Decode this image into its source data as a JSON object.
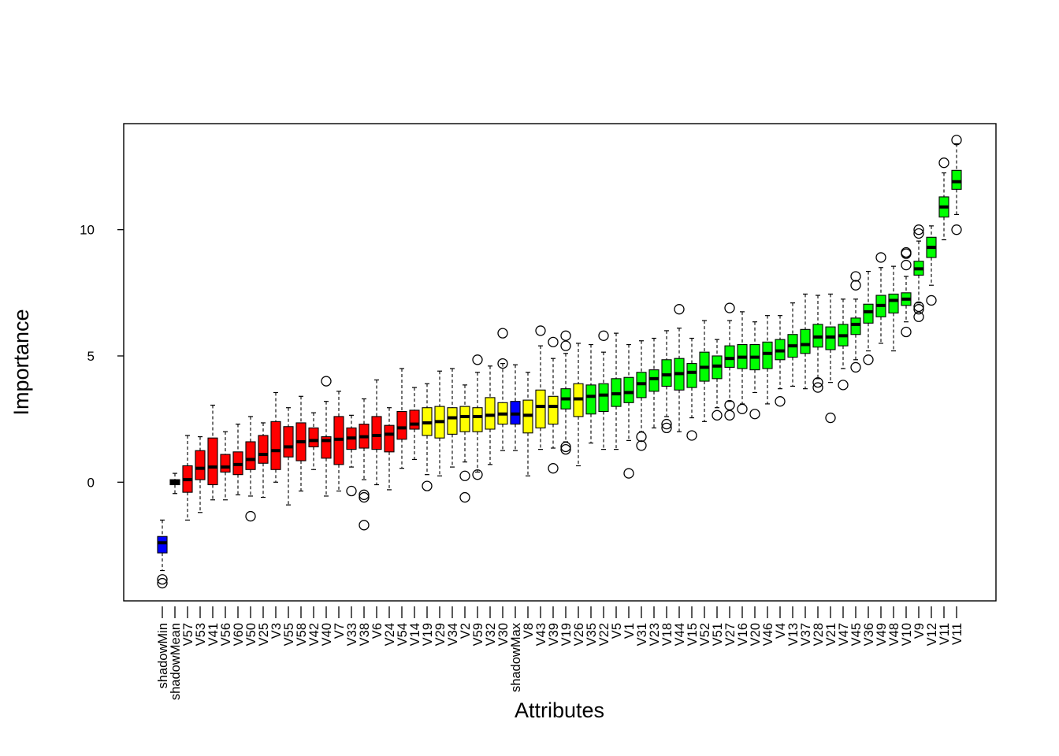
{
  "chart_data": {
    "type": "boxplot",
    "xlabel": "Attributes",
    "ylabel": "Importance",
    "ylim": [
      -4.7,
      14.2
    ],
    "yticks": [
      0,
      5,
      10
    ],
    "colors": {
      "shadow": "#0000ff",
      "rejected": "#ff0000",
      "tentative": "#ffff00",
      "confirmed": "#00ff00",
      "shadowMean": "#000000"
    },
    "boxes": [
      {
        "label": "shadowMin",
        "cls": "shadow",
        "q1": -2.8,
        "med": -2.4,
        "q3": -2.15,
        "wlo": -3.5,
        "whi": -1.5,
        "out": [
          -3.85,
          -4.0
        ]
      },
      {
        "label": "shadowMean",
        "cls": "shadowMean",
        "q1": -0.1,
        "med": 0.0,
        "q3": 0.1,
        "wlo": -0.45,
        "whi": 0.35,
        "out": []
      },
      {
        "label": "V57",
        "cls": "rejected",
        "q1": -0.4,
        "med": 0.1,
        "q3": 0.65,
        "wlo": -1.5,
        "whi": 1.85,
        "out": []
      },
      {
        "label": "V53",
        "cls": "rejected",
        "q1": 0.1,
        "med": 0.55,
        "q3": 1.25,
        "wlo": -1.2,
        "whi": 1.8,
        "out": []
      },
      {
        "label": "V41",
        "cls": "rejected",
        "q1": -0.1,
        "med": 0.6,
        "q3": 1.75,
        "wlo": -0.7,
        "whi": 3.05,
        "out": []
      },
      {
        "label": "V56",
        "cls": "rejected",
        "q1": 0.4,
        "med": 0.6,
        "q3": 1.1,
        "wlo": -0.7,
        "whi": 2.0,
        "out": []
      },
      {
        "label": "V60",
        "cls": "rejected",
        "q1": 0.3,
        "med": 0.7,
        "q3": 1.2,
        "wlo": -0.5,
        "whi": 2.3,
        "out": []
      },
      {
        "label": "V50",
        "cls": "rejected",
        "q1": 0.5,
        "med": 0.9,
        "q3": 1.6,
        "wlo": -0.55,
        "whi": 2.6,
        "out": [
          -1.35
        ]
      },
      {
        "label": "V25",
        "cls": "rejected",
        "q1": 0.75,
        "med": 1.1,
        "q3": 1.85,
        "wlo": -0.6,
        "whi": 2.35,
        "out": []
      },
      {
        "label": "V3",
        "cls": "rejected",
        "q1": 0.5,
        "med": 1.25,
        "q3": 2.4,
        "wlo": 0.0,
        "whi": 3.55,
        "out": []
      },
      {
        "label": "V55",
        "cls": "rejected",
        "q1": 1.0,
        "med": 1.4,
        "q3": 2.2,
        "wlo": -0.9,
        "whi": 2.95,
        "out": []
      },
      {
        "label": "V58",
        "cls": "rejected",
        "q1": 0.85,
        "med": 1.6,
        "q3": 2.35,
        "wlo": -0.35,
        "whi": 3.4,
        "out": []
      },
      {
        "label": "V42",
        "cls": "rejected",
        "q1": 1.4,
        "med": 1.65,
        "q3": 2.15,
        "wlo": 0.5,
        "whi": 2.75,
        "out": []
      },
      {
        "label": "V40",
        "cls": "rejected",
        "q1": 0.95,
        "med": 1.65,
        "q3": 1.8,
        "wlo": -0.55,
        "whi": 3.2,
        "out": [
          4.0
        ]
      },
      {
        "label": "V7",
        "cls": "rejected",
        "q1": 0.7,
        "med": 1.7,
        "q3": 2.6,
        "wlo": -0.35,
        "whi": 3.6,
        "out": []
      },
      {
        "label": "V33",
        "cls": "rejected",
        "q1": 1.3,
        "med": 1.75,
        "q3": 2.15,
        "wlo": 0.6,
        "whi": 2.65,
        "out": [
          -0.35
        ]
      },
      {
        "label": "V38",
        "cls": "rejected",
        "q1": 1.35,
        "med": 1.8,
        "q3": 2.3,
        "wlo": 0.1,
        "whi": 3.3,
        "out": [
          -0.5,
          -0.6,
          -1.7
        ]
      },
      {
        "label": "V6",
        "cls": "rejected",
        "q1": 1.3,
        "med": 1.85,
        "q3": 2.6,
        "wlo": -0.1,
        "whi": 4.05,
        "out": []
      },
      {
        "label": "V24",
        "cls": "rejected",
        "q1": 1.2,
        "med": 1.9,
        "q3": 2.25,
        "wlo": -0.3,
        "whi": 2.95,
        "out": []
      },
      {
        "label": "V54",
        "cls": "rejected",
        "q1": 1.7,
        "med": 2.15,
        "q3": 2.8,
        "wlo": 0.55,
        "whi": 4.5,
        "out": []
      },
      {
        "label": "V14",
        "cls": "rejected",
        "q1": 2.1,
        "med": 2.3,
        "q3": 2.85,
        "wlo": 0.9,
        "whi": 3.75,
        "out": []
      },
      {
        "label": "V19",
        "cls": "tentative",
        "q1": 1.85,
        "med": 2.35,
        "q3": 2.95,
        "wlo": 0.3,
        "whi": 3.9,
        "out": [
          -0.15
        ]
      },
      {
        "label": "V29",
        "cls": "tentative",
        "q1": 1.75,
        "med": 2.4,
        "q3": 3.0,
        "wlo": 0.25,
        "whi": 4.4,
        "out": []
      },
      {
        "label": "V34",
        "cls": "tentative",
        "q1": 1.9,
        "med": 2.55,
        "q3": 2.95,
        "wlo": 0.6,
        "whi": 4.5,
        "out": []
      },
      {
        "label": "V2",
        "cls": "tentative",
        "q1": 2.0,
        "med": 2.6,
        "q3": 3.0,
        "wlo": 0.8,
        "whi": 3.85,
        "out": [
          0.25,
          -0.6
        ]
      },
      {
        "label": "V59",
        "cls": "tentative",
        "q1": 2.0,
        "med": 2.6,
        "q3": 2.95,
        "wlo": 0.4,
        "whi": 4.35,
        "out": [
          0.3,
          4.85
        ]
      },
      {
        "label": "V32",
        "cls": "tentative",
        "q1": 2.1,
        "med": 2.65,
        "q3": 3.35,
        "wlo": 0.7,
        "whi": 4.6,
        "out": []
      },
      {
        "label": "V30",
        "cls": "tentative",
        "q1": 2.3,
        "med": 2.7,
        "q3": 3.15,
        "wlo": 1.25,
        "whi": 4.7,
        "out": [
          4.7,
          5.9
        ]
      },
      {
        "label": "shadowMax",
        "cls": "shadow",
        "q1": 2.3,
        "med": 2.7,
        "q3": 3.2,
        "wlo": 1.25,
        "whi": 4.65,
        "out": []
      },
      {
        "label": "V8",
        "cls": "tentative",
        "q1": 1.95,
        "med": 2.65,
        "q3": 3.25,
        "wlo": 0.25,
        "whi": 4.35,
        "out": []
      },
      {
        "label": "V43",
        "cls": "tentative",
        "q1": 2.15,
        "med": 3.0,
        "q3": 3.65,
        "wlo": 1.3,
        "whi": 5.4,
        "out": [
          6.0
        ]
      },
      {
        "label": "V39",
        "cls": "tentative",
        "q1": 2.3,
        "med": 3.0,
        "q3": 3.4,
        "wlo": 1.35,
        "whi": 4.9,
        "out": [
          0.55,
          5.55
        ]
      },
      {
        "label": "V19b",
        "display": "V19",
        "cls": "confirmed",
        "q1": 2.9,
        "med": 3.3,
        "q3": 3.7,
        "wlo": 1.6,
        "whi": 5.1,
        "out": [
          1.3,
          1.4,
          5.4,
          5.8
        ]
      },
      {
        "label": "V26",
        "cls": "tentative",
        "q1": 2.6,
        "med": 3.3,
        "q3": 3.9,
        "wlo": 0.65,
        "whi": 5.5,
        "out": []
      },
      {
        "label": "V35",
        "cls": "confirmed",
        "q1": 2.7,
        "med": 3.4,
        "q3": 3.85,
        "wlo": 1.55,
        "whi": 5.45,
        "out": []
      },
      {
        "label": "V22",
        "cls": "confirmed",
        "q1": 2.8,
        "med": 3.45,
        "q3": 3.9,
        "wlo": 1.3,
        "whi": 5.15,
        "out": [
          5.8
        ]
      },
      {
        "label": "V5",
        "cls": "confirmed",
        "q1": 3.0,
        "med": 3.5,
        "q3": 4.1,
        "wlo": 1.3,
        "whi": 5.9,
        "out": []
      },
      {
        "label": "V1",
        "cls": "confirmed",
        "q1": 3.15,
        "med": 3.55,
        "q3": 4.15,
        "wlo": 1.65,
        "whi": 5.45,
        "out": [
          0.35
        ]
      },
      {
        "label": "V31",
        "cls": "confirmed",
        "q1": 3.35,
        "med": 3.9,
        "q3": 4.35,
        "wlo": 2.0,
        "whi": 5.6,
        "out": [
          1.45,
          1.8
        ]
      },
      {
        "label": "V23",
        "cls": "confirmed",
        "q1": 3.6,
        "med": 4.1,
        "q3": 4.45,
        "wlo": 2.15,
        "whi": 5.7,
        "out": []
      },
      {
        "label": "V18",
        "cls": "confirmed",
        "q1": 3.8,
        "med": 4.25,
        "q3": 4.85,
        "wlo": 2.6,
        "whi": 6.0,
        "out": [
          2.15,
          2.3
        ]
      },
      {
        "label": "V44",
        "cls": "confirmed",
        "q1": 3.65,
        "med": 4.3,
        "q3": 4.9,
        "wlo": 2.0,
        "whi": 6.1,
        "out": [
          6.85
        ]
      },
      {
        "label": "V15",
        "cls": "confirmed",
        "q1": 3.75,
        "med": 4.35,
        "q3": 4.7,
        "wlo": 2.55,
        "whi": 5.7,
        "out": [
          1.85
        ]
      },
      {
        "label": "V52",
        "cls": "confirmed",
        "q1": 4.0,
        "med": 4.55,
        "q3": 5.15,
        "wlo": 2.4,
        "whi": 6.4,
        "out": []
      },
      {
        "label": "V51",
        "cls": "confirmed",
        "q1": 4.1,
        "med": 4.6,
        "q3": 5.0,
        "wlo": 2.95,
        "whi": 5.65,
        "out": [
          2.65
        ]
      },
      {
        "label": "V27",
        "cls": "confirmed",
        "q1": 4.55,
        "med": 4.9,
        "q3": 5.4,
        "wlo": 3.2,
        "whi": 6.4,
        "out": [
          2.65,
          3.05,
          6.9
        ]
      },
      {
        "label": "V16",
        "cls": "confirmed",
        "q1": 4.5,
        "med": 4.95,
        "q3": 5.45,
        "wlo": 3.1,
        "whi": 6.75,
        "out": [
          2.9
        ]
      },
      {
        "label": "V20",
        "cls": "confirmed",
        "q1": 4.45,
        "med": 4.95,
        "q3": 5.45,
        "wlo": 3.55,
        "whi": 6.35,
        "out": [
          2.7
        ]
      },
      {
        "label": "V46",
        "cls": "confirmed",
        "q1": 4.5,
        "med": 5.1,
        "q3": 5.55,
        "wlo": 3.1,
        "whi": 6.6,
        "out": []
      },
      {
        "label": "V4",
        "cls": "confirmed",
        "q1": 4.85,
        "med": 5.2,
        "q3": 5.65,
        "wlo": 3.7,
        "whi": 6.6,
        "out": [
          3.2
        ]
      },
      {
        "label": "V13",
        "cls": "confirmed",
        "q1": 4.95,
        "med": 5.4,
        "q3": 5.85,
        "wlo": 3.8,
        "whi": 7.1,
        "out": []
      },
      {
        "label": "V37",
        "cls": "confirmed",
        "q1": 5.1,
        "med": 5.45,
        "q3": 6.05,
        "wlo": 3.7,
        "whi": 7.45,
        "out": []
      },
      {
        "label": "V28",
        "cls": "confirmed",
        "q1": 5.35,
        "med": 5.75,
        "q3": 6.25,
        "wlo": 4.1,
        "whi": 7.4,
        "out": [
          3.75,
          3.95
        ]
      },
      {
        "label": "V21",
        "cls": "confirmed",
        "q1": 5.25,
        "med": 5.75,
        "q3": 6.15,
        "wlo": 3.95,
        "whi": 7.45,
        "out": [
          2.55
        ]
      },
      {
        "label": "V47",
        "cls": "confirmed",
        "q1": 5.4,
        "med": 5.8,
        "q3": 6.25,
        "wlo": 4.5,
        "whi": 7.25,
        "out": [
          3.85
        ]
      },
      {
        "label": "V45",
        "cls": "confirmed",
        "q1": 5.85,
        "med": 6.25,
        "q3": 6.5,
        "wlo": 4.85,
        "whi": 7.25,
        "out": [
          4.55,
          7.8,
          8.15
        ]
      },
      {
        "label": "V36",
        "cls": "confirmed",
        "q1": 6.3,
        "med": 6.75,
        "q3": 7.05,
        "wlo": 5.2,
        "whi": 8.35,
        "out": [
          4.85
        ]
      },
      {
        "label": "V49",
        "cls": "confirmed",
        "q1": 6.55,
        "med": 7.0,
        "q3": 7.4,
        "wlo": 5.5,
        "whi": 8.5,
        "out": [
          8.9
        ]
      },
      {
        "label": "V48",
        "cls": "confirmed",
        "q1": 6.7,
        "med": 7.2,
        "q3": 7.45,
        "wlo": 5.2,
        "whi": 8.55,
        "out": []
      },
      {
        "label": "V10",
        "cls": "confirmed",
        "q1": 7.0,
        "med": 7.25,
        "q3": 7.5,
        "wlo": 6.35,
        "whi": 8.15,
        "out": [
          5.95,
          8.6,
          9.05,
          9.1
        ]
      },
      {
        "label": "V9",
        "cls": "confirmed",
        "q1": 8.2,
        "med": 8.45,
        "q3": 8.75,
        "wlo": 7.1,
        "whi": 9.55,
        "out": [
          6.55,
          6.85,
          6.95,
          9.85,
          10.0
        ]
      },
      {
        "label": "V12",
        "cls": "confirmed",
        "q1": 8.9,
        "med": 9.3,
        "q3": 9.7,
        "wlo": 7.8,
        "whi": 10.15,
        "out": [
          7.2
        ]
      },
      {
        "label": "V11",
        "cls": "confirmed",
        "q1": 10.5,
        "med": 10.9,
        "q3": 11.3,
        "wlo": 9.6,
        "whi": 12.25,
        "out": [
          12.65
        ]
      },
      {
        "label": "V11b",
        "display": "V11",
        "cls": "confirmed",
        "q1": 11.6,
        "med": 11.9,
        "q3": 12.35,
        "wlo": 10.6,
        "whi": 13.4,
        "out": [
          10.0,
          13.55
        ]
      }
    ]
  }
}
